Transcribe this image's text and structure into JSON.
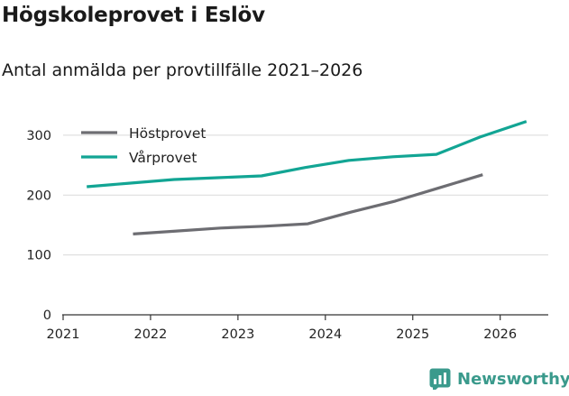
{
  "title": "Högskoleprovet i Eslöv",
  "subtitle": "Antal anmälda per provtillfälle 2021–2026",
  "brand": {
    "name": "Newsworthy",
    "icon": "newsworthy-logo-icon",
    "color": "#3a9a8c"
  },
  "chart_data": {
    "type": "line",
    "title": "Högskoleprovet i Eslöv",
    "subtitle": "Antal anmälda per provtillfälle 2021–2026",
    "xlabel": "",
    "ylabel": "",
    "xlim": [
      2021,
      2026.55
    ],
    "ylim": [
      0,
      330
    ],
    "x_ticks": [
      "2021",
      "2022",
      "2023",
      "2024",
      "2025",
      "2026"
    ],
    "y_ticks": [
      "0",
      "100",
      "200",
      "300"
    ],
    "grid": true,
    "legend_position": "top-left",
    "series": [
      {
        "name": "Höstprovet",
        "color": "#6d6d72",
        "x": [
          2021.8,
          2022.3,
          2022.8,
          2023.3,
          2023.8,
          2024.3,
          2024.8,
          2025.3,
          2025.8
        ],
        "values": [
          135,
          140,
          145,
          148,
          152,
          172,
          190,
          212,
          234
        ]
      },
      {
        "name": "Vårprovet",
        "color": "#12a594",
        "x": [
          2021.27,
          2021.77,
          2022.27,
          2022.77,
          2023.27,
          2023.77,
          2024.27,
          2024.77,
          2025.27,
          2025.77,
          2026.3
        ],
        "values": [
          214,
          220,
          226,
          229,
          232,
          246,
          258,
          264,
          268,
          297,
          323
        ]
      }
    ]
  }
}
